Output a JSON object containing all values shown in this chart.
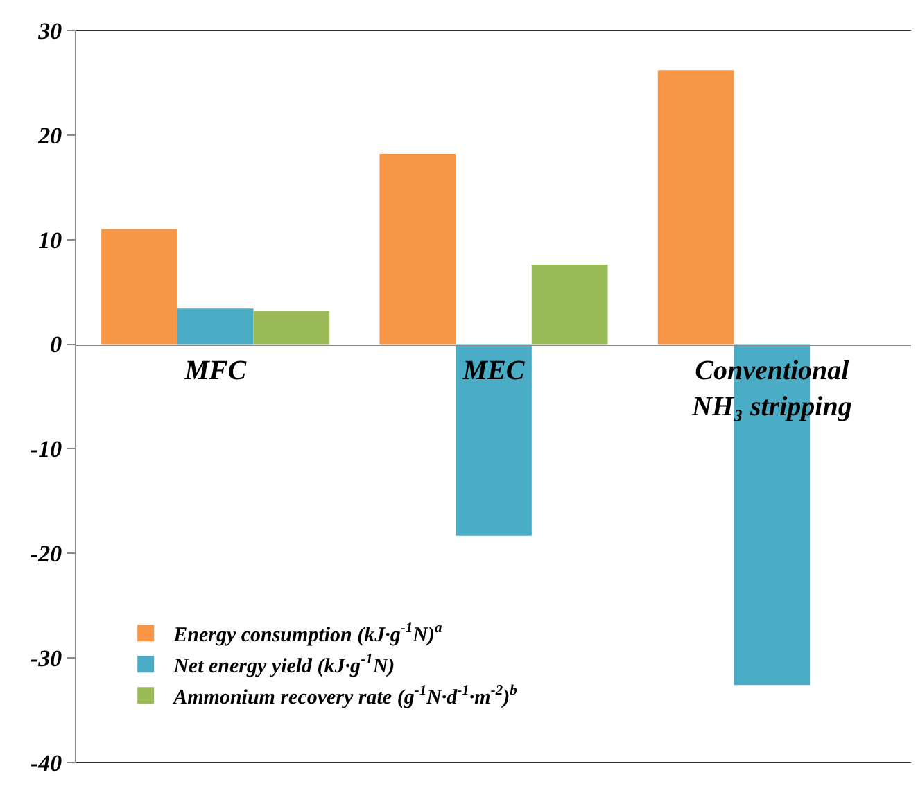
{
  "chart_data": {
    "type": "bar",
    "categories": [
      "MFC",
      "MEC",
      "Conventional NH₃ stripping"
    ],
    "series": [
      {
        "name": "Energy consumption (kJ·g$^{-1}$N)$^{a}$",
        "color": "#f79646",
        "values": [
          11.0,
          18.2,
          26.2
        ]
      },
      {
        "name": "Net energy yield (kJ·g$^{-1}$N)",
        "color": "#4bacc6",
        "values": [
          3.4,
          -18.3,
          -32.6
        ]
      },
      {
        "name": "Ammonium recovery rate (g$^{-1}$N·d$^{-1}$·m$^{-2}$)$^{b}$",
        "color": "#9bbb59",
        "values": [
          3.2,
          7.6,
          null
        ]
      }
    ],
    "ylim": [
      -40,
      30
    ],
    "yticks": [
      -40,
      -30,
      -20,
      -10,
      0,
      10,
      20,
      30
    ],
    "grid": false,
    "legend": "bottom left"
  }
}
